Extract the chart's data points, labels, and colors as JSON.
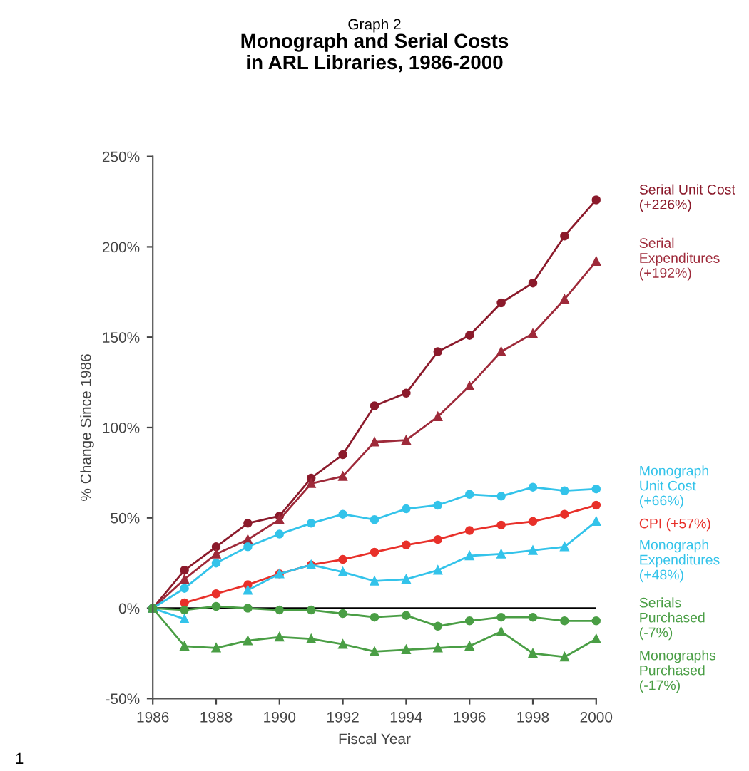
{
  "chart_data": {
    "type": "line",
    "subtitle": "Graph 2",
    "title": "Monograph and Serial Costs\nin ARL Libraries, 1986-2000",
    "xlabel": "Fiscal Year",
    "ylabel": "% Change Since 1986",
    "x": [
      1986,
      1987,
      1988,
      1989,
      1990,
      1991,
      1992,
      1993,
      1994,
      1995,
      1996,
      1997,
      1998,
      1999,
      2000
    ],
    "series": [
      {
        "name": "Serial Unit Cost\n(+226%)",
        "color": "#8b1a2b",
        "marker": "circle",
        "values": [
          0,
          21,
          34,
          47,
          51,
          72,
          85,
          112,
          119,
          142,
          151,
          169,
          180,
          206,
          226
        ]
      },
      {
        "name": "Serial\nExpenditures\n(+192%)",
        "color": "#9e2a3a",
        "marker": "triangle",
        "values": [
          0,
          16,
          30,
          38,
          49,
          69,
          73,
          92,
          93,
          106,
          123,
          142,
          152,
          171,
          192
        ]
      },
      {
        "name": "Monograph\nUnit Cost\n(+66%)",
        "color": "#33c3ea",
        "marker": "circle",
        "values": [
          0,
          11,
          25,
          34,
          41,
          47,
          52,
          49,
          55,
          57,
          63,
          62,
          67,
          65,
          66
        ]
      },
      {
        "name": "CPI (+57%)",
        "color": "#e8302a",
        "marker": "circle",
        "values": [
          null,
          3,
          8,
          13,
          19,
          24,
          27,
          31,
          35,
          38,
          43,
          46,
          48,
          52,
          57
        ]
      },
      {
        "name": "Monograph\nExpenditures\n(+48%)",
        "color": "#33c3ea",
        "marker": "triangle",
        "values": [
          0,
          -6,
          null,
          10,
          19,
          24,
          20,
          15,
          16,
          21,
          29,
          30,
          32,
          34,
          48
        ]
      },
      {
        "name": "Serials\nPurchased\n(-7%)",
        "color": "#4a9e45",
        "marker": "circle",
        "values": [
          0,
          -1,
          1,
          0,
          -1,
          -1,
          -3,
          -5,
          -4,
          -10,
          -7,
          -5,
          -5,
          -7,
          -7
        ]
      },
      {
        "name": "Monographs\nPurchased\n(-17%)",
        "color": "#4a9e45",
        "marker": "triangle",
        "values": [
          0,
          -21,
          -22,
          -18,
          -16,
          -17,
          -20,
          -24,
          -23,
          -22,
          -21,
          -13,
          -25,
          -27,
          -17
        ]
      }
    ],
    "xlim": [
      1986,
      2000
    ],
    "xticks": [
      1986,
      1988,
      1990,
      1992,
      1994,
      1996,
      1998,
      2000
    ],
    "ylim": [
      -50,
      250
    ],
    "yticks": [
      {
        "value": -50,
        "label": "-50%"
      },
      {
        "value": 0,
        "label": "0%"
      },
      {
        "value": 50,
        "label": "50%"
      },
      {
        "value": 100,
        "label": "100%"
      },
      {
        "value": 150,
        "label": "150%"
      },
      {
        "value": 200,
        "label": "200%"
      },
      {
        "value": 250,
        "label": "250%"
      }
    ],
    "ref_lines": [
      {
        "axis": "y",
        "value": 0,
        "color": "#000000"
      }
    ],
    "annotations": [
      "1"
    ],
    "grid": false,
    "legend": false
  }
}
